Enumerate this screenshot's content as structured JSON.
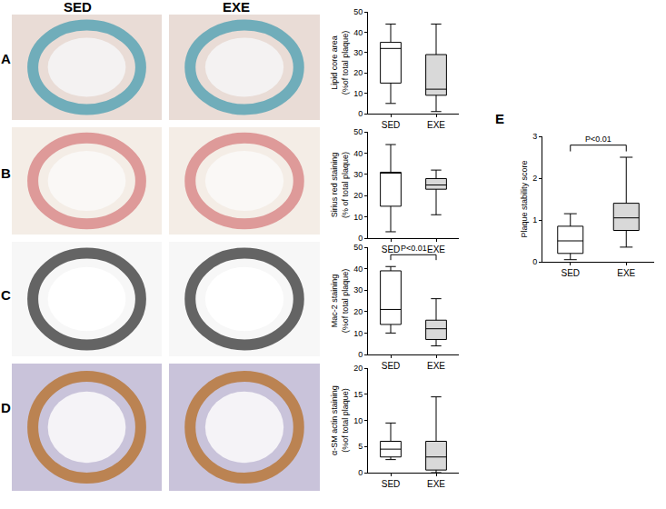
{
  "column_headers": [
    "SED",
    "EXE"
  ],
  "chart_data": [
    {
      "panel": "A",
      "type": "box",
      "ylabel": "Lipid core area\n(%of total plaque)",
      "categories": [
        "SED",
        "EXE"
      ],
      "colors": [
        "#ffffff",
        "#d9d9d9"
      ],
      "values": [
        {
          "min": 5,
          "q1": 15,
          "median": 32,
          "q3": 35,
          "max": 44
        },
        {
          "min": 1,
          "q1": 9,
          "median": 12,
          "q3": 29,
          "max": 44
        }
      ],
      "ylim": [
        0,
        50
      ],
      "yticks": [
        0,
        10,
        20,
        30,
        40,
        50
      ],
      "grid": false
    },
    {
      "panel": "B",
      "type": "box",
      "ylabel": "Sirius red staining\n(% of total plaque)",
      "categories": [
        "SED",
        "EXE"
      ],
      "colors": [
        "#ffffff",
        "#d9d9d9"
      ],
      "values": [
        {
          "min": 3,
          "q1": 15,
          "median": 31,
          "q3": 31,
          "max": 44
        },
        {
          "min": 11,
          "q1": 23,
          "median": 25,
          "q3": 28,
          "max": 32
        }
      ],
      "ylim": [
        0,
        50
      ],
      "yticks": [
        0,
        10,
        20,
        30,
        40,
        50
      ],
      "grid": false
    },
    {
      "panel": "C",
      "type": "box",
      "ylabel": "Mac-2 staining\n(%of total plaque)",
      "categories": [
        "SED",
        "EXE"
      ],
      "colors": [
        "#ffffff",
        "#d9d9d9"
      ],
      "values": [
        {
          "min": 10,
          "q1": 14,
          "median": 21,
          "q3": 39,
          "max": 41
        },
        {
          "min": 4,
          "q1": 7,
          "median": 12,
          "q3": 16,
          "max": 26
        }
      ],
      "ylim": [
        0,
        50
      ],
      "yticks": [
        0,
        10,
        20,
        30,
        40,
        50
      ],
      "grid": false,
      "comparison": {
        "text": "P<0.01",
        "categories": [
          "SED",
          "EXE"
        ]
      }
    },
    {
      "panel": "D",
      "type": "box",
      "ylabel": "α-SM actin staining\n(%of total plaque)",
      "categories": [
        "SED",
        "EXE"
      ],
      "colors": [
        "#ffffff",
        "#d9d9d9"
      ],
      "values": [
        {
          "min": 2.5,
          "q1": 3,
          "median": 4.5,
          "q3": 6,
          "max": 9.5
        },
        {
          "min": 0,
          "q1": 0.5,
          "median": 3,
          "q3": 6,
          "max": 14.5
        }
      ],
      "ylim": [
        0,
        20
      ],
      "yticks": [
        0,
        5,
        10,
        15,
        20
      ],
      "grid": false
    },
    {
      "panel": "E",
      "type": "box",
      "ylabel": "Plaque stability score",
      "categories": [
        "SED",
        "EXE"
      ],
      "colors": [
        "#ffffff",
        "#d9d9d9"
      ],
      "values": [
        {
          "min": 0.05,
          "q1": 0.2,
          "median": 0.5,
          "q3": 0.85,
          "max": 1.15
        },
        {
          "min": 0.35,
          "q1": 0.75,
          "median": 1.05,
          "q3": 1.4,
          "max": 2.5
        }
      ],
      "ylim": [
        0,
        3
      ],
      "yticks": [
        0,
        1,
        2,
        3
      ],
      "grid": false,
      "comparison": {
        "text": "P<0.01",
        "categories": [
          "SED",
          "EXE"
        ]
      }
    }
  ]
}
